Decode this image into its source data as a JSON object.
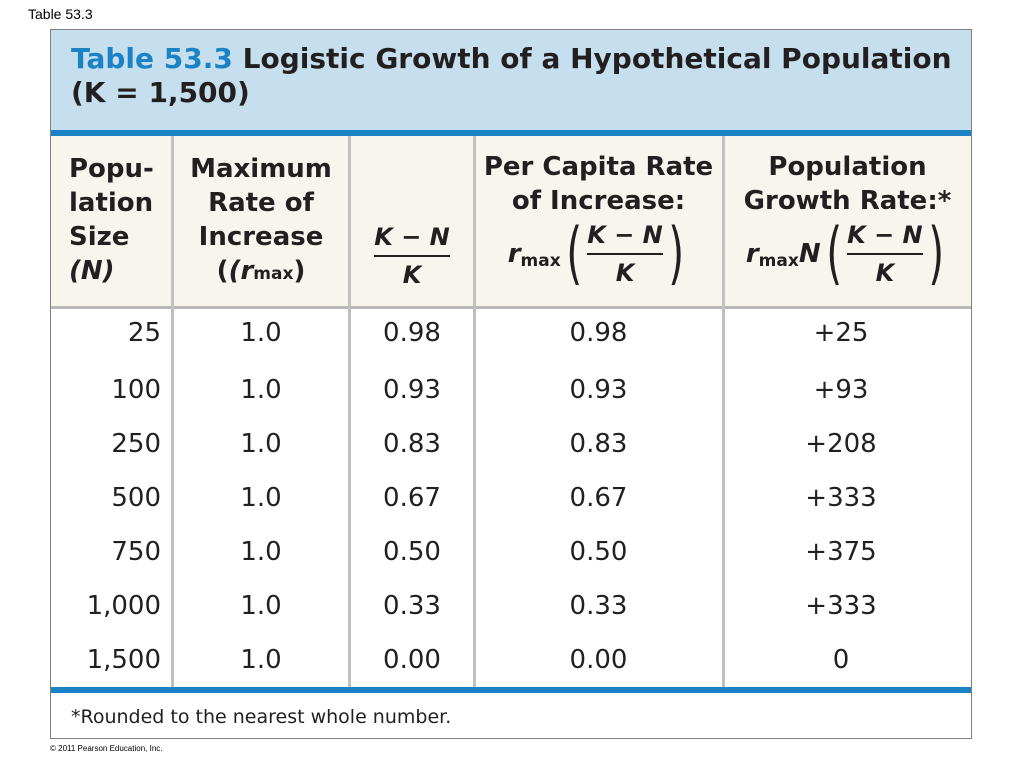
{
  "slide_label": "Table 53.3",
  "copyright": "© 2011 Pearson Education, Inc.",
  "table": {
    "title_number": "Table 53.3",
    "title_text": "Logistic Growth of a Hypothetical Population",
    "title_line2": "(K = 1,500)",
    "headers": {
      "col1": [
        "Popu-",
        "lation",
        "Size",
        "(N)"
      ],
      "col2": [
        "Maximum",
        "Rate of",
        "Increase",
        "(r",
        "max",
        ")"
      ],
      "col3_num": "K − N",
      "col3_den": "K",
      "col4_lines": [
        "Per Capita Rate",
        "of Increase:"
      ],
      "col4_r": "r",
      "col4_sub": "max",
      "col4_num": "K − N",
      "col4_den": "K",
      "col5_lines": [
        "Population",
        "Growth Rate:*"
      ],
      "col5_r": "r",
      "col5_sub": "max",
      "col5_n": "N",
      "col5_num": "K − N",
      "col5_den": "K"
    },
    "rows": [
      {
        "n": "25",
        "rmax": "1.0",
        "kn": "0.98",
        "per_capita": "0.98",
        "growth": "+25"
      },
      {
        "n": "100",
        "rmax": "1.0",
        "kn": "0.93",
        "per_capita": "0.93",
        "growth": "+93"
      },
      {
        "n": "250",
        "rmax": "1.0",
        "kn": "0.83",
        "per_capita": "0.83",
        "growth": "+208"
      },
      {
        "n": "500",
        "rmax": "1.0",
        "kn": "0.67",
        "per_capita": "0.67",
        "growth": "+333"
      },
      {
        "n": "750",
        "rmax": "1.0",
        "kn": "0.50",
        "per_capita": "0.50",
        "growth": "+375"
      },
      {
        "n": "1,000",
        "rmax": "1.0",
        "kn": "0.33",
        "per_capita": "0.33",
        "growth": "+333"
      },
      {
        "n": "1,500",
        "rmax": "1.0",
        "kn": "0.00",
        "per_capita": "0.00",
        "growth": "0"
      }
    ],
    "footnote": "*Rounded to the nearest whole number."
  }
}
